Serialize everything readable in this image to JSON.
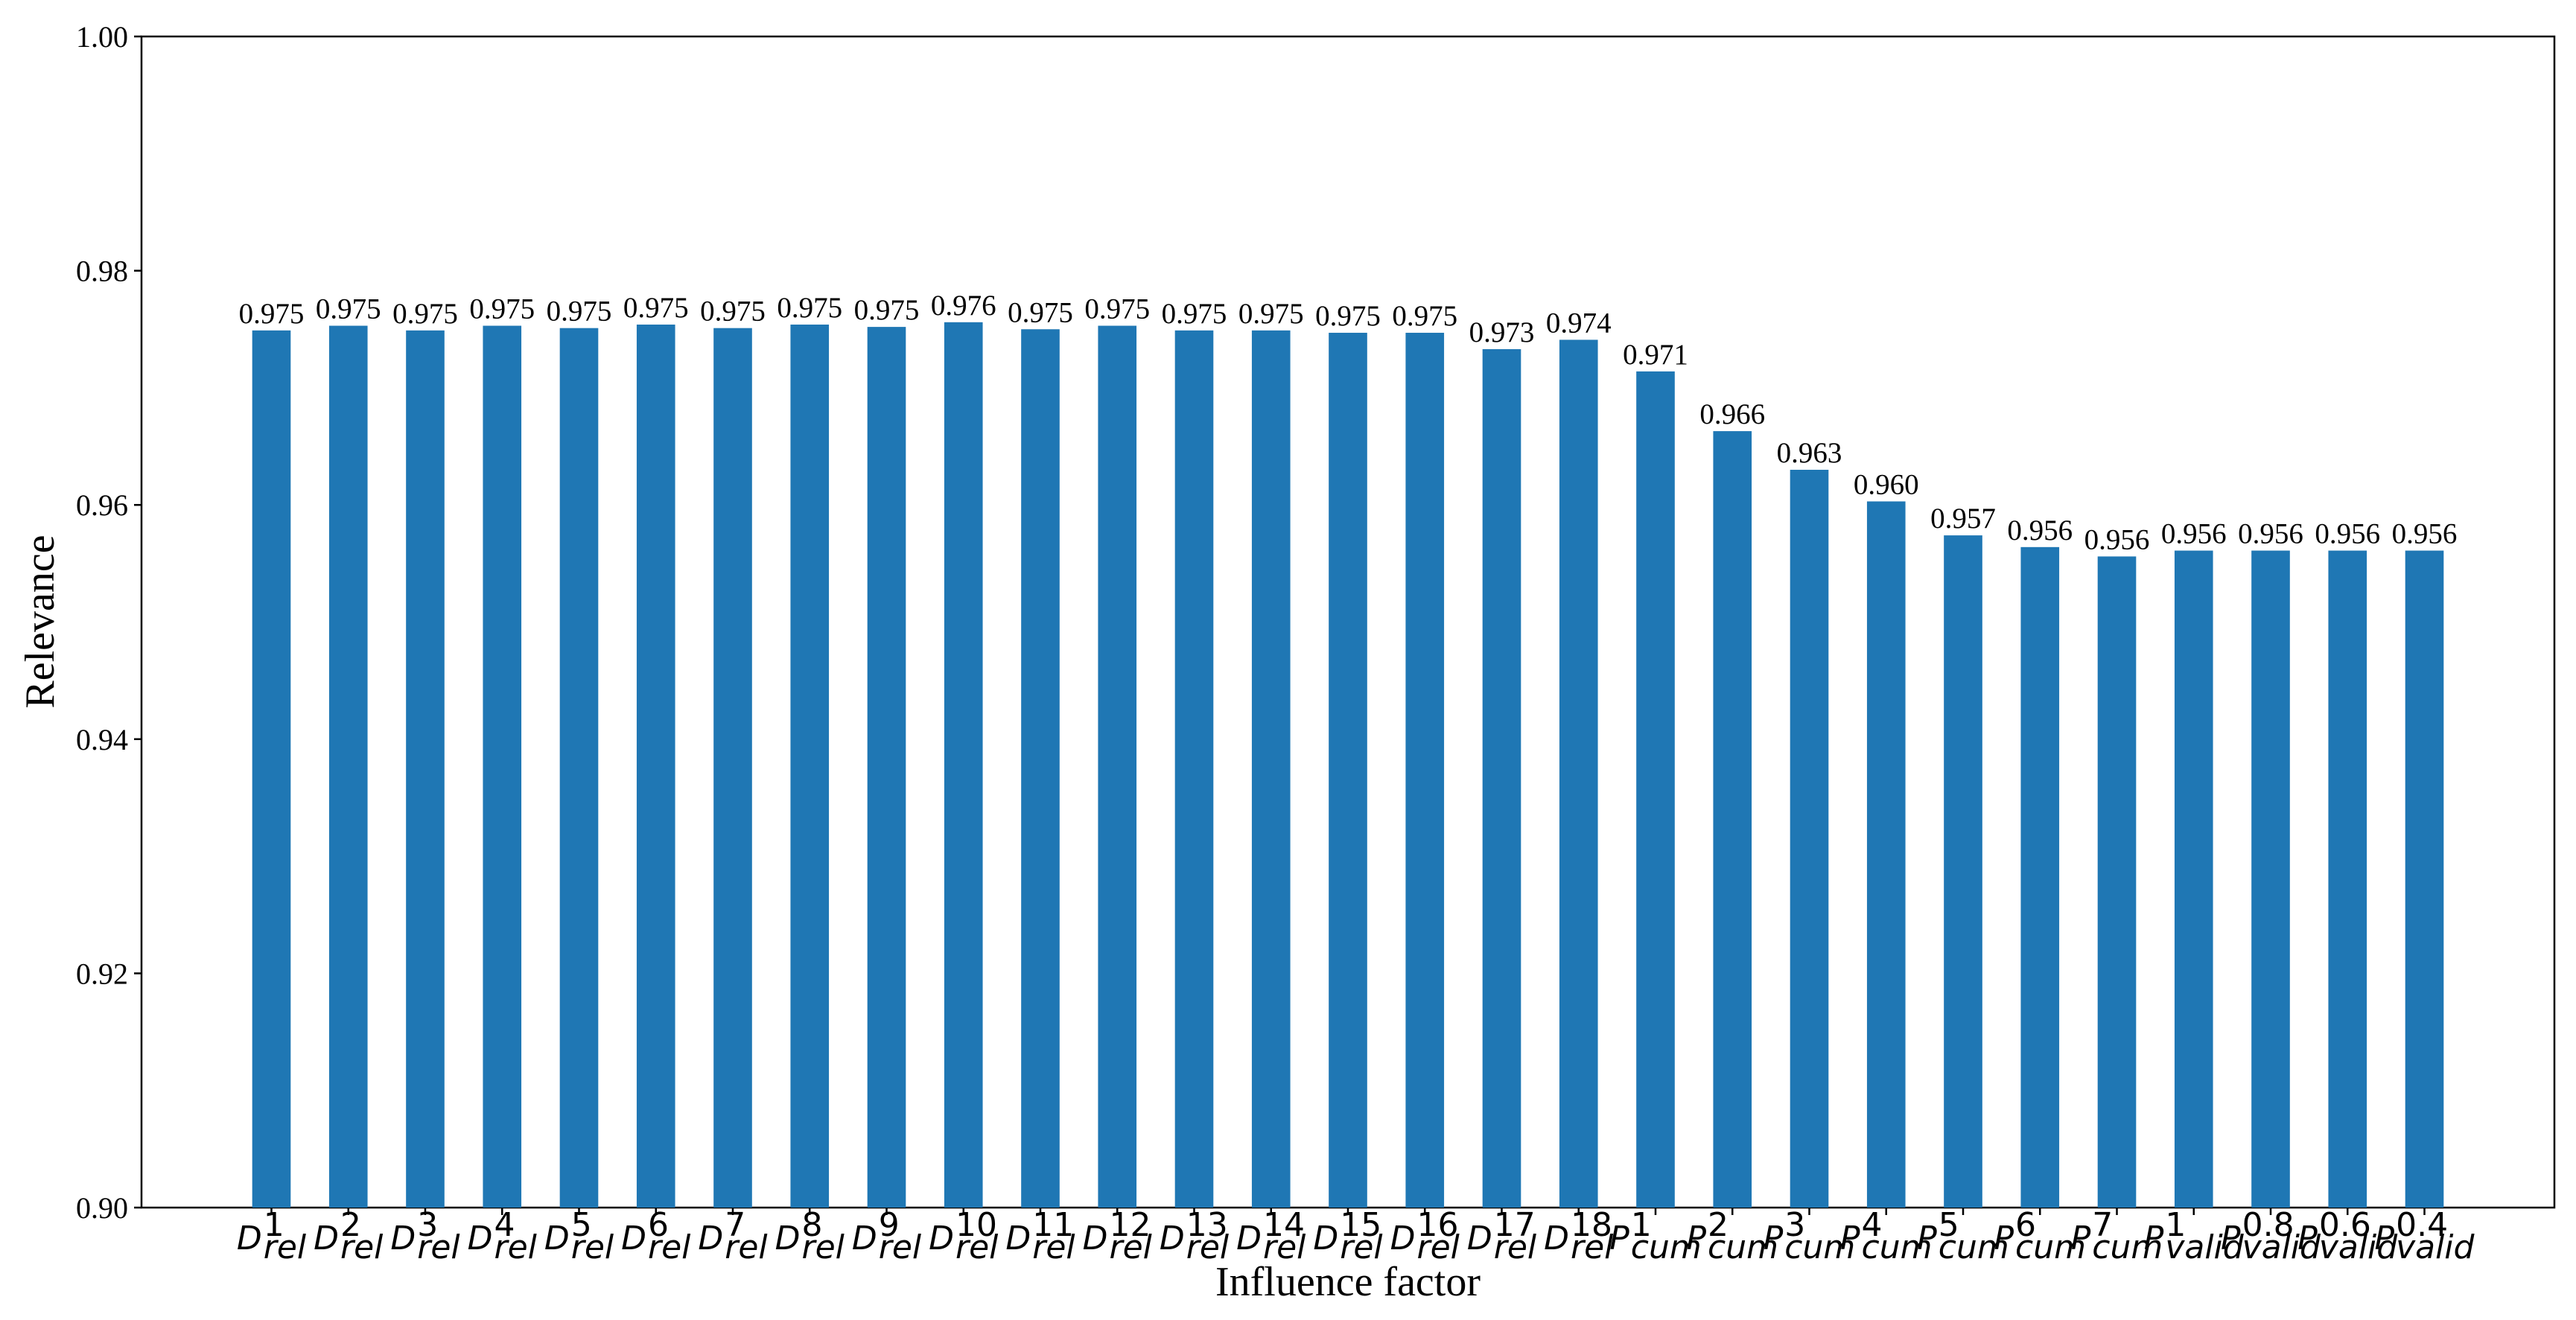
{
  "chart_data": {
    "type": "bar",
    "x_label": "Influence factor",
    "y_label": "Relevance",
    "color": "#1f77b4",
    "categories": [
      {
        "base": "D",
        "sup": "1",
        "sub": "rel"
      },
      {
        "base": "D",
        "sup": "2",
        "sub": "rel"
      },
      {
        "base": "D",
        "sup": "3",
        "sub": "rel"
      },
      {
        "base": "D",
        "sup": "4",
        "sub": "rel"
      },
      {
        "base": "D",
        "sup": "5",
        "sub": "rel"
      },
      {
        "base": "D",
        "sup": "6",
        "sub": "rel"
      },
      {
        "base": "D",
        "sup": "7",
        "sub": "rel"
      },
      {
        "base": "D",
        "sup": "8",
        "sub": "rel"
      },
      {
        "base": "D",
        "sup": "9",
        "sub": "rel"
      },
      {
        "base": "D",
        "sup": "10",
        "sub": "rel"
      },
      {
        "base": "D",
        "sup": "11",
        "sub": "rel"
      },
      {
        "base": "D",
        "sup": "12",
        "sub": "rel"
      },
      {
        "base": "D",
        "sup": "13",
        "sub": "rel"
      },
      {
        "base": "D",
        "sup": "14",
        "sub": "rel"
      },
      {
        "base": "D",
        "sup": "15",
        "sub": "rel"
      },
      {
        "base": "D",
        "sup": "16",
        "sub": "rel"
      },
      {
        "base": "D",
        "sup": "17",
        "sub": "rel"
      },
      {
        "base": "D",
        "sup": "18",
        "sub": "rel"
      },
      {
        "base": "P",
        "sup": "1",
        "sub": "cum"
      },
      {
        "base": "P",
        "sup": "2",
        "sub": "cum"
      },
      {
        "base": "P",
        "sup": "3",
        "sub": "cum"
      },
      {
        "base": "P",
        "sup": "4",
        "sub": "cum"
      },
      {
        "base": "P",
        "sup": "5",
        "sub": "cum"
      },
      {
        "base": "P",
        "sup": "6",
        "sub": "cum"
      },
      {
        "base": "P",
        "sup": "7",
        "sub": "cum"
      },
      {
        "base": "P",
        "sup": "1",
        "sub": "valid"
      },
      {
        "base": "P",
        "sup": "0.8",
        "sub": "valid"
      },
      {
        "base": "P",
        "sup": "0.6",
        "sub": "valid"
      },
      {
        "base": "P",
        "sup": "0.4",
        "sub": "valid"
      }
    ],
    "values": [
      0.9749,
      0.9753,
      0.9749,
      0.9753,
      0.9751,
      0.9754,
      0.9751,
      0.9754,
      0.9752,
      0.9756,
      0.975,
      0.9753,
      0.9749,
      0.9749,
      0.9747,
      0.9747,
      0.9733,
      0.9741,
      0.9714,
      0.9663,
      0.963,
      0.9603,
      0.9574,
      0.9564,
      0.9556,
      0.9561,
      0.9561,
      0.9561,
      0.9561
    ],
    "value_labels": [
      "0.975",
      "0.975",
      "0.975",
      "0.975",
      "0.975",
      "0.975",
      "0.975",
      "0.975",
      "0.975",
      "0.976",
      "0.975",
      "0.975",
      "0.975",
      "0.975",
      "0.975",
      "0.975",
      "0.973",
      "0.974",
      "0.971",
      "0.966",
      "0.963",
      "0.960",
      "0.957",
      "0.956",
      "0.956",
      "0.956",
      "0.956",
      "0.956",
      "0.956"
    ],
    "ylim": [
      0.9,
      1.0
    ],
    "yticks": [
      {
        "value": 0.9,
        "label": "0.90"
      },
      0.92,
      0.94,
      0.96,
      0.98,
      {
        "value": 1.0,
        "label": "1.00"
      }
    ],
    "grid": false
  }
}
